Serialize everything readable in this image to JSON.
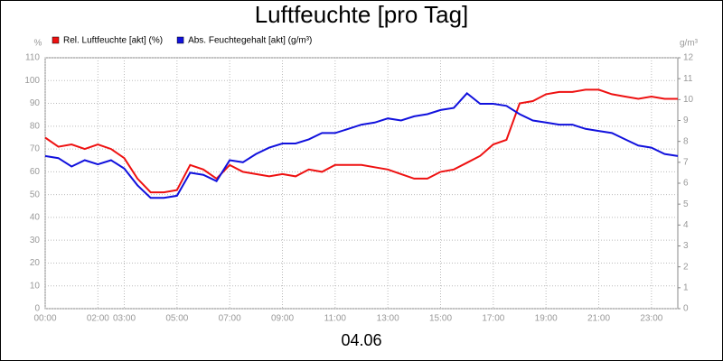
{
  "chart_data": {
    "type": "line",
    "title": "Luftfeuchte [pro Tag]",
    "xlabel": "04.06",
    "ylabel": "%",
    "y2label": "g/m³",
    "x": [
      0,
      0.5,
      1,
      1.5,
      2,
      2.5,
      3,
      3.5,
      4,
      4.5,
      5,
      5.5,
      6,
      6.5,
      7,
      7.5,
      8,
      8.5,
      9,
      9.5,
      10,
      10.5,
      11,
      11.5,
      12,
      12.5,
      13,
      13.5,
      14,
      14.5,
      15,
      15.5,
      16,
      16.5,
      17,
      17.5,
      18,
      18.5,
      19,
      19.5,
      20,
      20.5,
      21,
      21.5,
      22,
      22.5,
      23,
      23.5,
      24
    ],
    "series": [
      {
        "name": "Rel. Luftfeuchte [akt] (%)",
        "color": "#ee1111",
        "values": [
          75,
          71,
          72,
          70,
          72,
          70,
          66,
          57,
          51,
          51,
          52,
          63,
          61,
          57,
          63,
          60,
          59,
          58,
          59,
          58,
          61,
          60,
          63,
          63,
          63,
          62,
          61,
          59,
          57,
          57,
          60,
          61,
          64,
          67,
          72,
          74,
          90,
          91,
          94,
          95,
          95,
          96,
          96,
          94,
          93,
          92,
          93,
          92,
          92
        ]
      },
      {
        "name": "Abs. Feuchtegehalt [akt] (g/m³)",
        "color": "#1111dd",
        "axis": "y2",
        "values": [
          7.3,
          7.2,
          6.8,
          7.1,
          6.9,
          7.1,
          6.7,
          5.9,
          5.3,
          5.3,
          5.4,
          6.5,
          6.4,
          6.1,
          7.1,
          7.0,
          7.4,
          7.7,
          7.9,
          7.9,
          8.1,
          8.4,
          8.4,
          8.6,
          8.8,
          8.9,
          9.1,
          9.0,
          9.2,
          9.3,
          9.5,
          9.6,
          10.3,
          9.8,
          9.8,
          9.7,
          9.3,
          9.0,
          8.9,
          8.8,
          8.8,
          8.6,
          8.5,
          8.4,
          8.1,
          7.8,
          7.7,
          7.4,
          7.3
        ]
      }
    ],
    "xlim": [
      0,
      24
    ],
    "xticks": [
      {
        "value": 0,
        "label": "00:00"
      },
      {
        "value": 2,
        "label": "02:00"
      },
      {
        "value": 3,
        "label": "03:00"
      },
      {
        "value": 5,
        "label": "05:00"
      },
      {
        "value": 7,
        "label": "07:00"
      },
      {
        "value": 9,
        "label": "09:00"
      },
      {
        "value": 11,
        "label": "11:00"
      },
      {
        "value": 13,
        "label": "13:00"
      },
      {
        "value": 15,
        "label": "15:00"
      },
      {
        "value": 17,
        "label": "17:00"
      },
      {
        "value": 19,
        "label": "19:00"
      },
      {
        "value": 21,
        "label": "21:00"
      },
      {
        "value": 23,
        "label": "23:00"
      }
    ],
    "ylim": [
      0,
      110
    ],
    "yticks": [
      0,
      10,
      20,
      30,
      40,
      50,
      60,
      70,
      80,
      90,
      100,
      110
    ],
    "y2lim": [
      0,
      12
    ],
    "y2ticks": [
      0,
      1,
      2,
      3,
      4,
      5,
      6,
      7,
      8,
      9,
      10,
      11,
      12
    ],
    "grid": true
  }
}
